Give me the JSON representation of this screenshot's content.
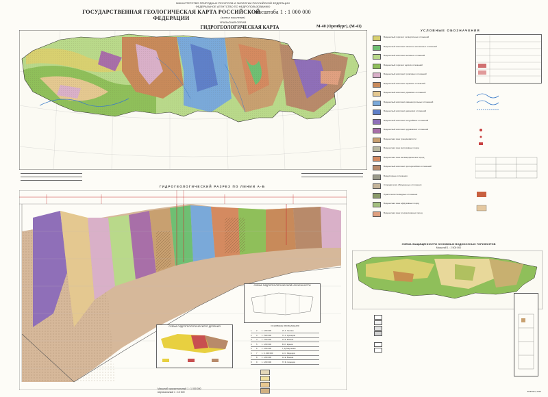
{
  "header": {
    "ministry_line1": "МИНИСТЕРСТВО ПРИРОДНЫХ РЕСУРСОВ И ЭКОЛОГИИ РОССИЙСКОЙ ФЕДЕРАЦИИ",
    "ministry_line2": "ФЕДЕРАЛЬНОЕ АГЕНТСТВО ПО НЕДРОПОЛЬЗОВАНИЮ",
    "main_title": "ГОСУДАРСТВЕННАЯ ГЕОЛОГИЧЕСКАЯ КАРТА РОССИЙСКОЙ ФЕДЕРАЦИИ",
    "scale": "масштаба 1 : 1 000 000",
    "generation": "(третье поколение)",
    "series": "УРАЛЬСКАЯ СЕРИЯ",
    "map_title": "ГИДРОГЕОЛОГИЧЕСКАЯ КАРТА",
    "sheet": "M-40 (Оренбург), (M-41)"
  },
  "legend": {
    "title": "УСЛОВНЫЕ ОБОЗНАЧЕНИЯ",
    "rows": [
      {
        "color": "#d8d070",
        "text": "Водоносный горизонт четвертичных отложений"
      },
      {
        "color": "#6fbf73",
        "text": "Водоносный комплекс палеоген-неогеновых отложений"
      },
      {
        "color": "#b9d98a",
        "text": "Водоносный комплекс меловых отложений"
      },
      {
        "color": "#8fbf5a",
        "text": "Водоносный горизонт юрских отложений"
      },
      {
        "color": "#d9b0c8",
        "text": "Водоносный комплекс триасовых отложений"
      },
      {
        "color": "#c88a5a",
        "text": "Водоносный комплекс пермских отложений"
      },
      {
        "color": "#e4c890",
        "text": "Водоносный комплекс уфимских отложений"
      },
      {
        "color": "#7aa9d9",
        "text": "Водоносный комплекс каменноугольных отложений"
      },
      {
        "color": "#5f80c8",
        "text": "Водоносный комплекс девонских отложений"
      },
      {
        "color": "#8f6fb8",
        "text": "Водоносный комплекс силурийских отложений"
      },
      {
        "color": "#a86fa8",
        "text": "Водоносный комплекс ордовикских отложений"
      },
      {
        "color": "#c8a070",
        "text": "Водоносная зона трещиноватости"
      },
      {
        "color": "#b8b8a0",
        "text": "Водоносная зона интрузивных пород"
      },
      {
        "color": "#d48a60",
        "text": "Водоносная зона метаморфических пород"
      },
      {
        "color": "#b88a6a",
        "text": "Водоносный комплекс протерозойских отложений"
      },
      {
        "color": "#9a9a8a",
        "text": "Водоупорные отложения"
      },
      {
        "color": "#c4b49a",
        "text": "Спорадически обводненные отложения"
      },
      {
        "color": "#8a9a6a",
        "text": "Практически безводные отложения"
      },
      {
        "color": "#a4c080",
        "text": "Водоносная зона эффузивных пород"
      },
      {
        "color": "#e0a080",
        "text": "Водоносная зона ультраосновных пород"
      }
    ]
  },
  "section": {
    "title": "ГИДРОГЕОЛОГИЧЕСКИЙ РАЗРЕЗ ПО ЛИНИИ А-Б"
  },
  "inset_right": {
    "title": "СХЕМА ЗАЩИЩЕННОСТИ ОСНОВНЫХ ВОДОНОСНЫХ ГОРИЗОНТОВ",
    "scale": "Масштаб 1 : 2 500 000"
  },
  "inset_middle": {
    "title": "СХЕМА ГИДРОГЕОЛОГИЧЕСКОЙ ИЗУЧЕННОСТИ"
  },
  "inset_zoning": {
    "title": "СХЕМА ГИДРОГЕОЛОГИЧЕСКОГО ДЕЛЕНИЯ"
  },
  "table": {
    "title": "ОСНОВНЫЕ ОБОЗНАЧЕНИЯ",
    "rows": [
      [
        "1",
        "2",
        "1 : 200 000",
        "И. А. Лыгина"
      ],
      [
        "2",
        "3",
        "1 : 500 000",
        "П. А. Кузнецов"
      ],
      [
        "3",
        "4",
        "1 : 200 000",
        "Н. Е. Волков"
      ],
      [
        "4",
        "5",
        "1 : 200 000",
        "В. И. Ершов"
      ],
      [
        "5",
        "6",
        "1 : 200 000",
        "Г. Д. Мартынов"
      ],
      [
        "6",
        "7",
        "1 : 1 000 000",
        "А. С. Фёдоров"
      ],
      [
        "7",
        "8",
        "1 : 200 000",
        "Н. Е. Волков"
      ],
      [
        "8",
        "9",
        "1 : 200 000",
        "П. Ф. Сидоров"
      ]
    ]
  },
  "scale_bar": {
    "h": "Масштаб горизонтальный 1 : 1 000 000",
    "v": "вертикальный 1 : 10 000"
  },
  "footer_right": "ВСЕГЕИ, 2010"
}
